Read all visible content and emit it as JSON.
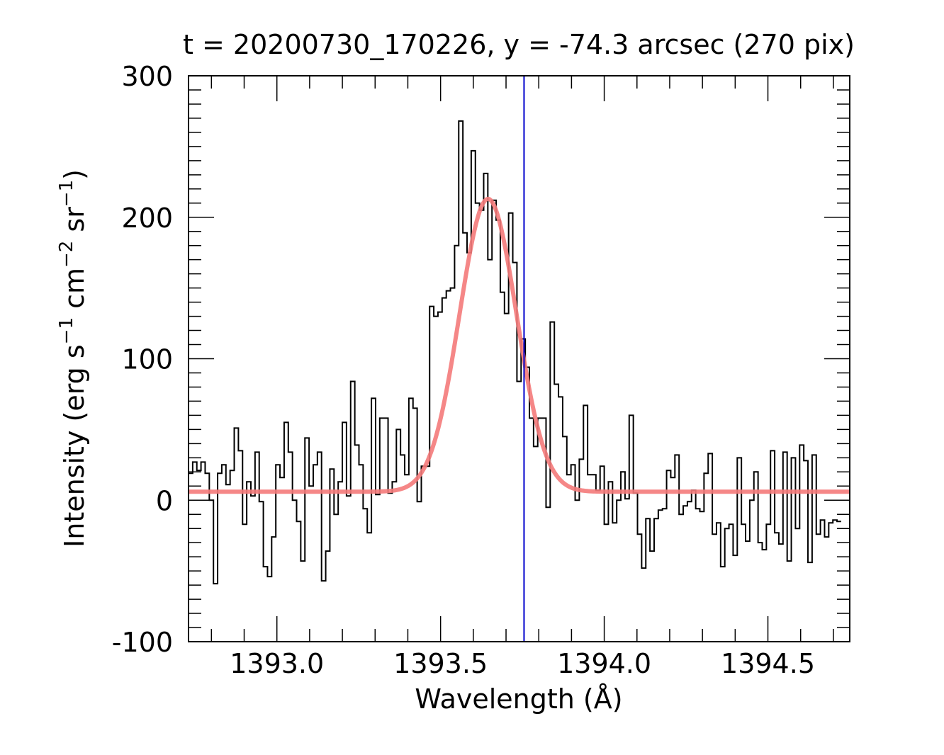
{
  "chart_data": {
    "type": "line",
    "title": "t = 20200730_170226,   y = -74.3 arcsec (270 pix)",
    "xlabel": "Wavelength (Å)",
    "ylabel_main": "Intensity (erg s",
    "ylabel_parts": [
      "Intensity (erg s",
      "−1",
      " cm",
      "−2",
      " sr",
      "−1",
      ")"
    ],
    "xlim": [
      1392.73,
      1394.75
    ],
    "ylim": [
      -100,
      300
    ],
    "x_major_ticks": [
      1393.0,
      1393.5,
      1394.0,
      1394.5
    ],
    "x_tick_labels": [
      "1393.0",
      "1393.5",
      "1394.0",
      "1394.5"
    ],
    "x_minor_step": 0.1,
    "y_major_ticks": [
      -100,
      0,
      100,
      200,
      300
    ],
    "y_tick_labels": [
      "-100",
      "0",
      "100",
      "200",
      "300"
    ],
    "y_minor_step": 10,
    "reference_line_x": 1393.755,
    "reference_line_color": "#0000cc",
    "observed": {
      "style": "steps",
      "color": "#000000",
      "x_start": 1392.73,
      "x_step": 0.0127,
      "values": [
        19,
        27,
        21,
        27,
        19,
        0,
        -59,
        19,
        25,
        11,
        21,
        51,
        35,
        -17,
        13,
        3,
        34,
        -1,
        -47,
        -54,
        -26,
        25,
        16,
        55,
        34,
        0,
        -15,
        -43,
        44,
        10,
        25,
        34,
        -57,
        -36,
        22,
        -10,
        13,
        55,
        3,
        84,
        39,
        25,
        -6,
        -23,
        72,
        4,
        58,
        58,
        5,
        13,
        50,
        32,
        18,
        72,
        65,
        -1,
        24,
        24,
        137,
        130,
        133,
        143,
        148,
        150,
        180,
        268,
        189,
        175,
        247,
        210,
        205,
        231,
        170,
        212,
        198,
        147,
        132,
        203,
        168,
        84,
        114,
        94,
        58,
        38,
        58,
        58,
        -5,
        126,
        82,
        73,
        45,
        18,
        25,
        0,
        29,
        67,
        18,
        18,
        7,
        24,
        -17,
        13,
        -16,
        0,
        20,
        1,
        60,
        5,
        -24,
        -48,
        -13,
        -36,
        -13,
        -7,
        -6,
        21,
        16,
        32,
        -10,
        -4,
        -1,
        7,
        -6,
        -8,
        19,
        33,
        -24,
        -16,
        -47,
        -20,
        -17,
        -39,
        30,
        -17,
        -29,
        0,
        20,
        -30,
        -35,
        -17,
        35,
        -23,
        -31,
        34,
        -43,
        30,
        -20,
        39,
        28,
        -44,
        32,
        -24,
        -14,
        -26,
        -16,
        -14,
        -15
      ]
    },
    "fit": {
      "style": "line",
      "color": "#f47a7a",
      "model": "gaussian",
      "amplitude": 207,
      "center": 1393.645,
      "sigma": 0.087,
      "baseline": 6
    }
  }
}
